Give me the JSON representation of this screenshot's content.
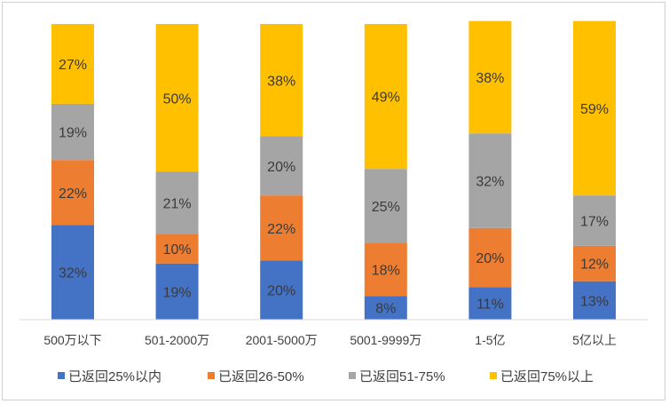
{
  "chart_data": {
    "type": "bar",
    "stacked": true,
    "categories": [
      "500万以下",
      "501-2000万",
      "2001-5000万",
      "5001-9999万",
      "1-5亿",
      "5亿以上"
    ],
    "series": [
      {
        "name": "已返回25%以内",
        "color": "#4472C4",
        "values": [
          32,
          19,
          20,
          8,
          11,
          13
        ],
        "labels": [
          "32%",
          "19%",
          "20%",
          "8%",
          "11%",
          "13%"
        ]
      },
      {
        "name": "已返回26-50%",
        "color": "#ED7D31",
        "values": [
          22,
          10,
          22,
          18,
          20,
          12
        ],
        "labels": [
          "22%",
          "10%",
          "22%",
          "18%",
          "20%",
          "12%"
        ]
      },
      {
        "name": "已返回51-75%",
        "color": "#A5A5A5",
        "values": [
          19,
          21,
          20,
          25,
          32,
          17
        ],
        "labels": [
          "19%",
          "21%",
          "20%",
          "25%",
          "32%",
          "17%"
        ]
      },
      {
        "name": "已返回75%以上",
        "color": "#FFC000",
        "values": [
          27,
          50,
          38,
          49,
          38,
          59
        ],
        "labels": [
          "27%",
          "50%",
          "38%",
          "49%",
          "38%",
          "59%"
        ]
      }
    ],
    "ylim": [
      0,
      100
    ],
    "legend_position": "bottom",
    "grid": false
  }
}
